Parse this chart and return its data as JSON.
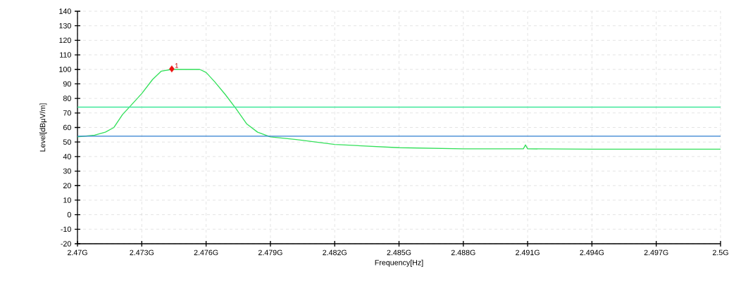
{
  "chart_data": {
    "type": "line",
    "xlabel": "Frequency[Hz]",
    "ylabel": "Level[dBµV/m]",
    "xlim": [
      2.47,
      2.5
    ],
    "ylim": [
      -20,
      140
    ],
    "xticks": [
      {
        "value": 2.47,
        "label": "2.47G"
      },
      {
        "value": 2.473,
        "label": "2.473G"
      },
      {
        "value": 2.476,
        "label": "2.476G"
      },
      {
        "value": 2.479,
        "label": "2.479G"
      },
      {
        "value": 2.482,
        "label": "2.482G"
      },
      {
        "value": 2.485,
        "label": "2.485G"
      },
      {
        "value": 2.488,
        "label": "2.488G"
      },
      {
        "value": 2.491,
        "label": "2.491G"
      },
      {
        "value": 2.494,
        "label": "2.494G"
      },
      {
        "value": 2.497,
        "label": "2.497G"
      },
      {
        "value": 2.5,
        "label": "2.5G"
      }
    ],
    "yticks": [
      -20,
      -10,
      0,
      10,
      20,
      30,
      40,
      50,
      60,
      70,
      80,
      90,
      100,
      110,
      120,
      130,
      140
    ],
    "grid": true,
    "line_style": "solid",
    "series": [
      {
        "color": "#33e05a",
        "marker": "none",
        "x": [
          2.47,
          2.4708,
          2.4713,
          2.4717,
          2.4721,
          2.4725,
          2.473,
          2.4735,
          2.4739,
          2.4744,
          2.4751,
          2.4757,
          2.476,
          2.4764,
          2.4769,
          2.4774,
          2.4779,
          2.4784,
          2.479,
          2.4802,
          2.482,
          2.485,
          2.488,
          2.4908,
          2.4909,
          2.491,
          2.494,
          2.5
        ],
        "values": [
          53.5,
          54.7,
          56.8,
          60,
          68.9,
          75.3,
          83.4,
          93,
          98.7,
          100,
          100,
          100,
          97.9,
          91.5,
          82.6,
          72.9,
          62.4,
          56.8,
          53.5,
          51.7,
          48.3,
          46.1,
          45.3,
          45.3,
          48,
          45.3,
          45.1,
          45.1
        ]
      },
      {
        "type": "scatter",
        "color": "#ee1111",
        "marker": "diamond",
        "x": [
          2.4744
        ],
        "values": [
          100.3
        ]
      }
    ],
    "ref_lines": [
      {
        "axis": "y",
        "value": 74,
        "color": "#3ee89a"
      },
      {
        "axis": "y",
        "value": 54,
        "color": "#2f7fd0"
      }
    ],
    "annotations": [
      {
        "text": "1",
        "x": 2.4744,
        "y": 100.3
      }
    ]
  }
}
